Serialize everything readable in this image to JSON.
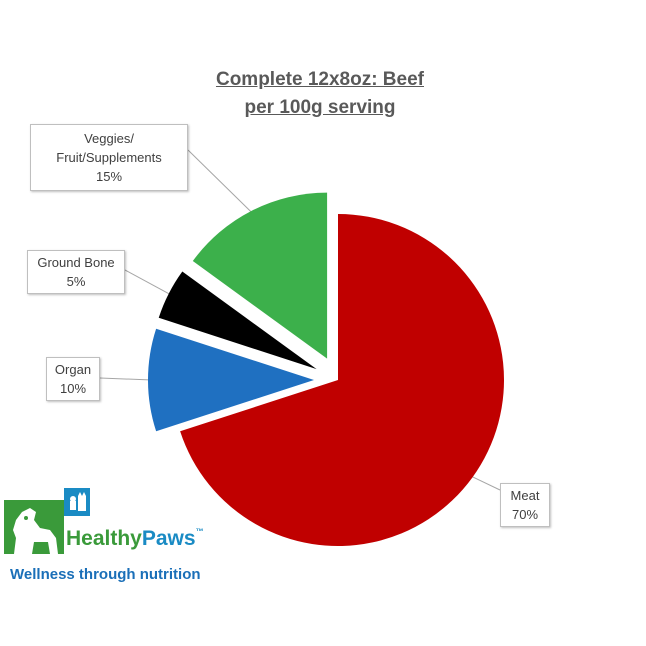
{
  "chart_data": {
    "type": "pie",
    "title": [
      "Complete 12x8oz: Beef",
      "per 100g serving"
    ],
    "slices": [
      {
        "label": "Meat",
        "value": 70,
        "value_label": "70%",
        "color": "#c00000",
        "exploded": false
      },
      {
        "label": "Organ",
        "value": 10,
        "value_label": "10%",
        "color": "#1f70c1",
        "exploded": true
      },
      {
        "label": "Ground Bone",
        "value": 5,
        "value_label": "5%",
        "color": "#000000",
        "exploded": true
      },
      {
        "label": "Veggies/\nFruit/Supplements",
        "value": 15,
        "value_label": "15%",
        "color": "#3cb04b",
        "exploded": true
      }
    ],
    "data_labels": "callouts",
    "legend": "none"
  },
  "brand": {
    "name_part1": "Healthy",
    "name_part2": "Paws",
    "trademark": "™",
    "tagline": "Wellness through nutrition",
    "logo_icon": "dog-silhouette-icon",
    "badge_icon": "cat-dog-badge-icon",
    "colors": {
      "green": "#3a9a3a",
      "blue": "#1a8bc4",
      "tagline": "#1a6fb8"
    }
  }
}
